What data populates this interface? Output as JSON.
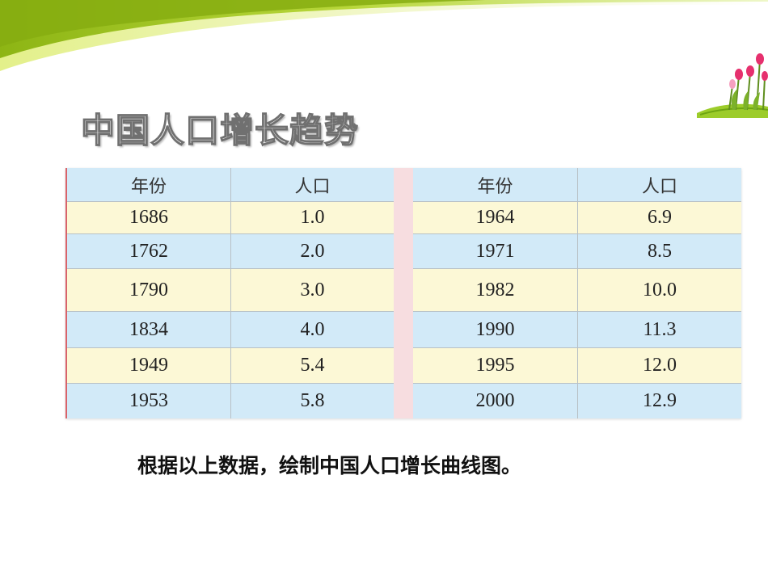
{
  "title": "中国人口增长趋势",
  "table": {
    "headers": {
      "year": "年份",
      "population": "人口"
    },
    "left": [
      {
        "year": "1686",
        "population": "1.0"
      },
      {
        "year": "1762",
        "population": "2.0"
      },
      {
        "year": "1790",
        "population": "3.0"
      },
      {
        "year": "1834",
        "population": "4.0"
      },
      {
        "year": "1949",
        "population": "5.4"
      },
      {
        "year": "1953",
        "population": "5.8"
      }
    ],
    "right": [
      {
        "year": "1964",
        "population": "6.9"
      },
      {
        "year": "1971",
        "population": "8.5"
      },
      {
        "year": "1982",
        "population": "10.0"
      },
      {
        "year": "1990",
        "population": "11.3"
      },
      {
        "year": "1995",
        "population": "12.0"
      },
      {
        "year": "2000",
        "population": "12.9"
      }
    ]
  },
  "note": "根据以上数据，绘制中国人口增长曲线图。",
  "colors": {
    "header_row": "#d2eaf8",
    "row_yellow": "#fcf8d6",
    "row_blue": "#d2eaf8",
    "divider": "#f7dde0",
    "swoosh": "#9bc41b"
  }
}
